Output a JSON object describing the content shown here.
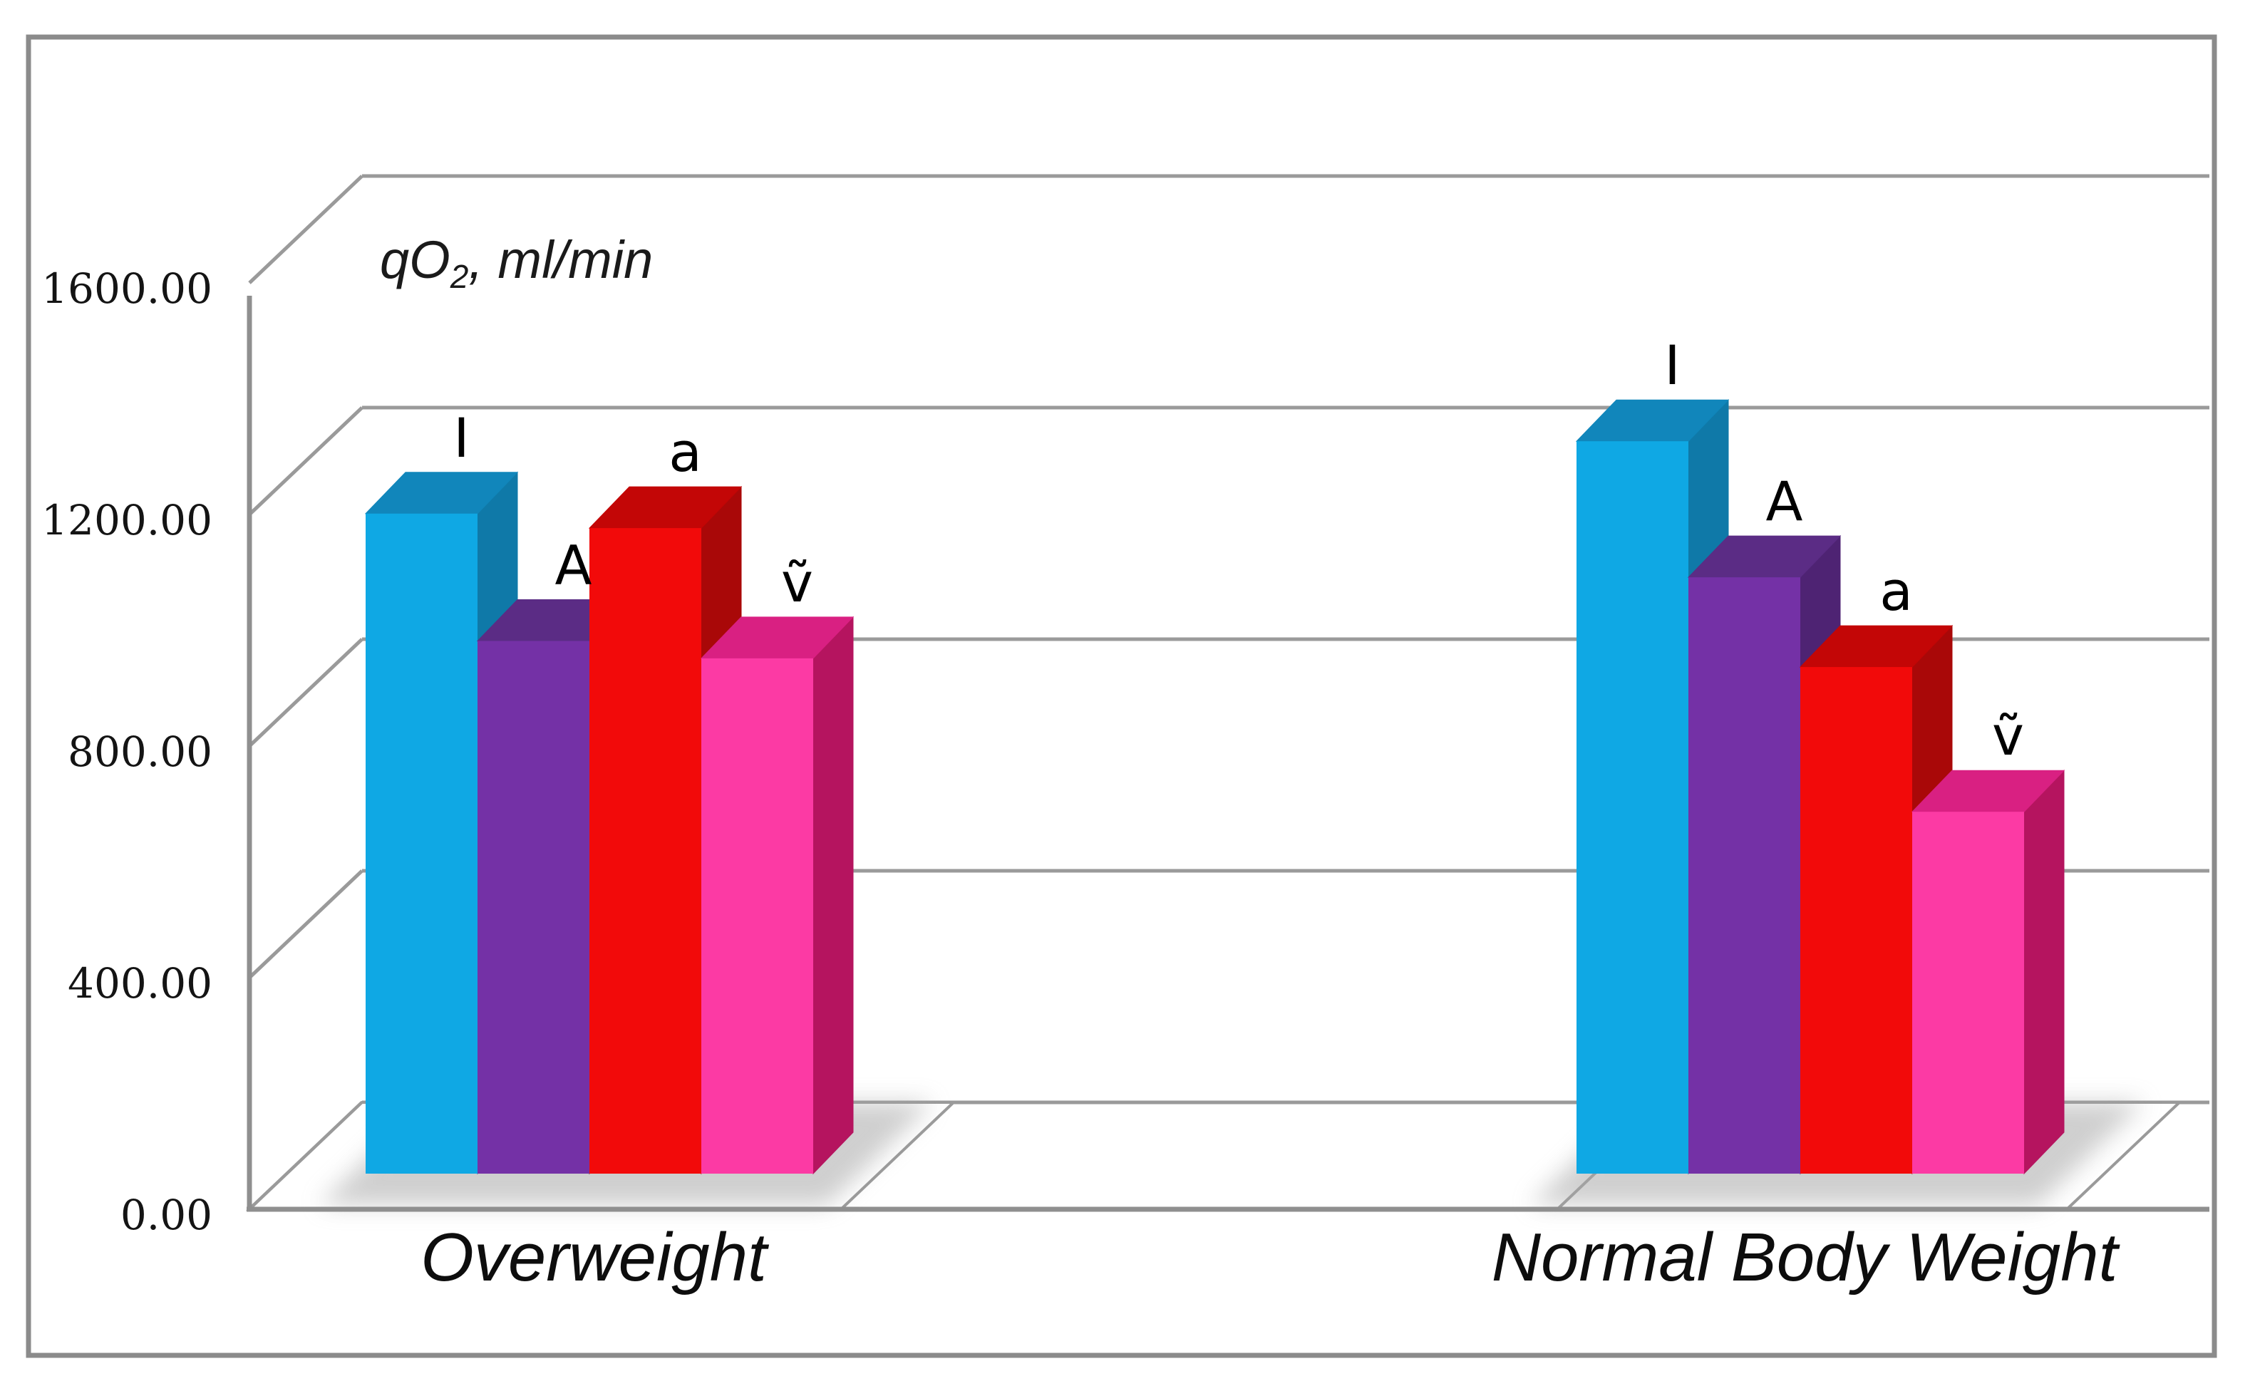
{
  "figure": {
    "background": "#ffffff",
    "border_color": "#8b8b8b"
  },
  "chart_data": {
    "type": "bar",
    "style": "3d-column",
    "title": {
      "text": "qO₂, ml/min",
      "prefix": "qO",
      "subscript": "2",
      "suffix": ", ml/min"
    },
    "value_axis": {
      "tick_labels": [
        "0.00",
        "400.00",
        "800.00",
        "1200.00",
        "1600.00"
      ],
      "tick_values": [
        0,
        400,
        800,
        1200,
        1600
      ],
      "min": 0,
      "max": 1600,
      "major_unit": 400
    },
    "categories": [
      "Overweight",
      "Normal Body Weight"
    ],
    "series": [
      {
        "name": "I",
        "values": [
          1140,
          1265
        ],
        "color": {
          "front": "#0fa8e4",
          "top": "#1186bb",
          "side": "#0f79a8"
        }
      },
      {
        "name": "A",
        "values": [
          920,
          1030
        ],
        "color": {
          "front": "#7431a6",
          "top": "#5b2c85",
          "side": "#4e2373"
        }
      },
      {
        "name": "a",
        "values": [
          1115,
          875
        ],
        "color": {
          "front": "#f20a0a",
          "top": "#c30606",
          "side": "#a90808"
        }
      },
      {
        "name": "ṽ",
        "values": [
          890,
          625
        ],
        "color": {
          "front": "#fc3aa4",
          "top": "#d92082",
          "side": "#b5145f"
        }
      }
    ],
    "grid": true,
    "legend_position": "none",
    "bar_labels": "series name above each column",
    "gridline_color": "#9a9a9a",
    "axis_line_color": "#8f8f8f",
    "shadow_color": "#a8a8a8",
    "text_color": "#141414"
  }
}
